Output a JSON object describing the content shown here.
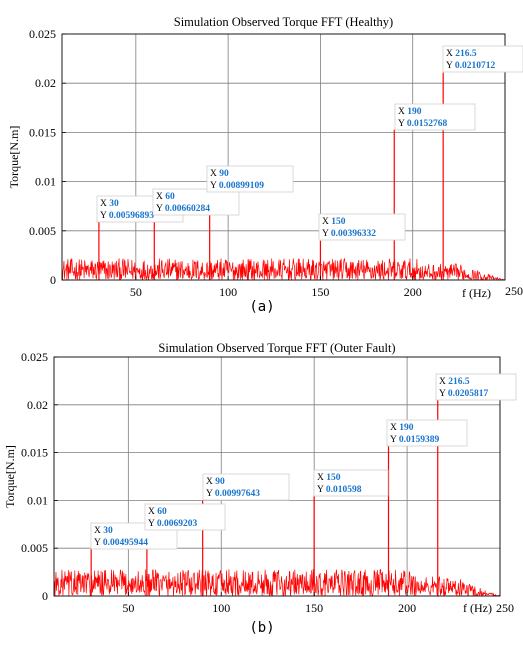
{
  "chart_data": [
    {
      "type": "line",
      "title": "Simulation Observed Torque FFT (Healthy)",
      "ylabel": "Torque[N.m]",
      "xlabel": "f (Hz)",
      "caption": "(a)",
      "xlim": [
        10,
        250
      ],
      "ylim": [
        0,
        0.025
      ],
      "xticks": [
        50,
        100,
        150,
        200,
        250
      ],
      "yticks": [
        0,
        0.005,
        0.01,
        0.015,
        0.02,
        0.025
      ],
      "ytick_labels": [
        "0",
        "0.005",
        "0.01",
        "0.015",
        "0.02",
        "0.025"
      ],
      "grid": true,
      "line_color": "#ff0000",
      "noise_level": 0.0022,
      "peaks": [
        {
          "x": 30,
          "y": 0.00596893,
          "xlabel": "30",
          "ylabel": "0.00596893"
        },
        {
          "x": 60,
          "y": 0.00660284,
          "xlabel": "60",
          "ylabel": "0.00660284"
        },
        {
          "x": 90,
          "y": 0.00899109,
          "xlabel": "90",
          "ylabel": "0.00899109"
        },
        {
          "x": 150,
          "y": 0.00396332,
          "xlabel": "150",
          "ylabel": "0.00396332"
        },
        {
          "x": 190,
          "y": 0.0152768,
          "xlabel": "190",
          "ylabel": "0.0152768"
        },
        {
          "x": 216.5,
          "y": 0.0210712,
          "xlabel": "216.5",
          "ylabel": "0.0210712"
        }
      ]
    },
    {
      "type": "line",
      "title": "Simulation Observed Torque FFT (Outer Fault)",
      "ylabel": "Torque[N.m]",
      "xlabel": "f (Hz)",
      "caption": "(b)",
      "xlim": [
        10,
        250
      ],
      "ylim": [
        0,
        0.025
      ],
      "xticks": [
        50,
        100,
        150,
        200,
        250
      ],
      "yticks": [
        0,
        0.005,
        0.01,
        0.015,
        0.02,
        0.025
      ],
      "ytick_labels": [
        "0",
        "0.005",
        "0.01",
        "0.015",
        "0.02",
        "0.025"
      ],
      "grid": true,
      "line_color": "#ff0000",
      "noise_level": 0.0028,
      "peaks": [
        {
          "x": 30,
          "y": 0.00495944,
          "xlabel": "30",
          "ylabel": "0.00495944"
        },
        {
          "x": 60,
          "y": 0.0069203,
          "xlabel": "60",
          "ylabel": "0.0069203"
        },
        {
          "x": 90,
          "y": 0.00997643,
          "xlabel": "90",
          "ylabel": "0.00997643"
        },
        {
          "x": 150,
          "y": 0.010598,
          "xlabel": "150",
          "ylabel": "0.010598"
        },
        {
          "x": 190,
          "y": 0.0159389,
          "xlabel": "190",
          "ylabel": "0.0159389"
        },
        {
          "x": 216.5,
          "y": 0.0205817,
          "xlabel": "216.5",
          "ylabel": "0.0205817"
        }
      ]
    }
  ]
}
